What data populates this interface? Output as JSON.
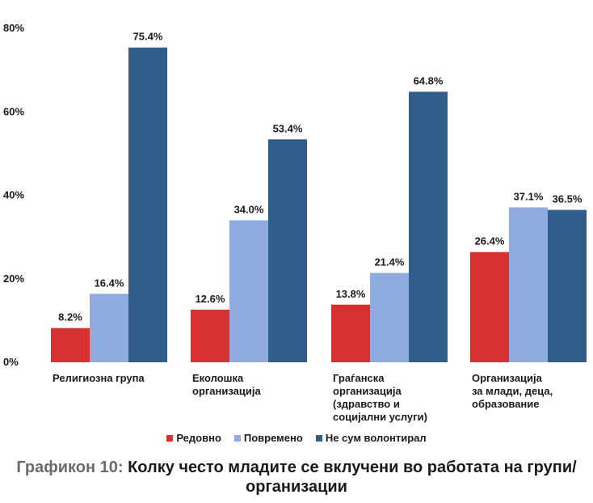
{
  "chart_data": {
    "type": "bar",
    "categories": [
      [
        "Религиозна група"
      ],
      [
        "Еколошка",
        "организација"
      ],
      [
        "Граѓанска",
        "организација",
        "(здравство и",
        "социјални услуги)"
      ],
      [
        "Организација",
        "за млади, деца,",
        "образование"
      ]
    ],
    "series": [
      {
        "name": "Редовно",
        "color": "#d63131",
        "values": [
          8.2,
          12.6,
          13.8,
          26.4
        ],
        "labels": [
          "8.2%",
          "12.6%",
          "13.8%",
          "26.4%"
        ]
      },
      {
        "name": "Повремено",
        "color": "#8fabdf",
        "values": [
          16.4,
          34.0,
          21.4,
          37.1
        ],
        "labels": [
          "16.4%",
          "34.0%",
          "21.4%",
          "37.1%"
        ]
      },
      {
        "name": "Не сум волонтирал",
        "color": "#305e8a",
        "values": [
          75.4,
          53.4,
          64.8,
          36.5
        ],
        "labels": [
          "75.4%",
          "53.4%",
          "64.8%",
          "36.5%"
        ]
      }
    ],
    "yticks": [
      "0%",
      "20%",
      "40%",
      "60%",
      "80%"
    ],
    "ylim": [
      0,
      80
    ],
    "grid": false,
    "legend": "bottom"
  },
  "caption": {
    "prefix": "Графикон 10:",
    "text": " Колку често младите се вклучени во работата на групи/организации"
  }
}
